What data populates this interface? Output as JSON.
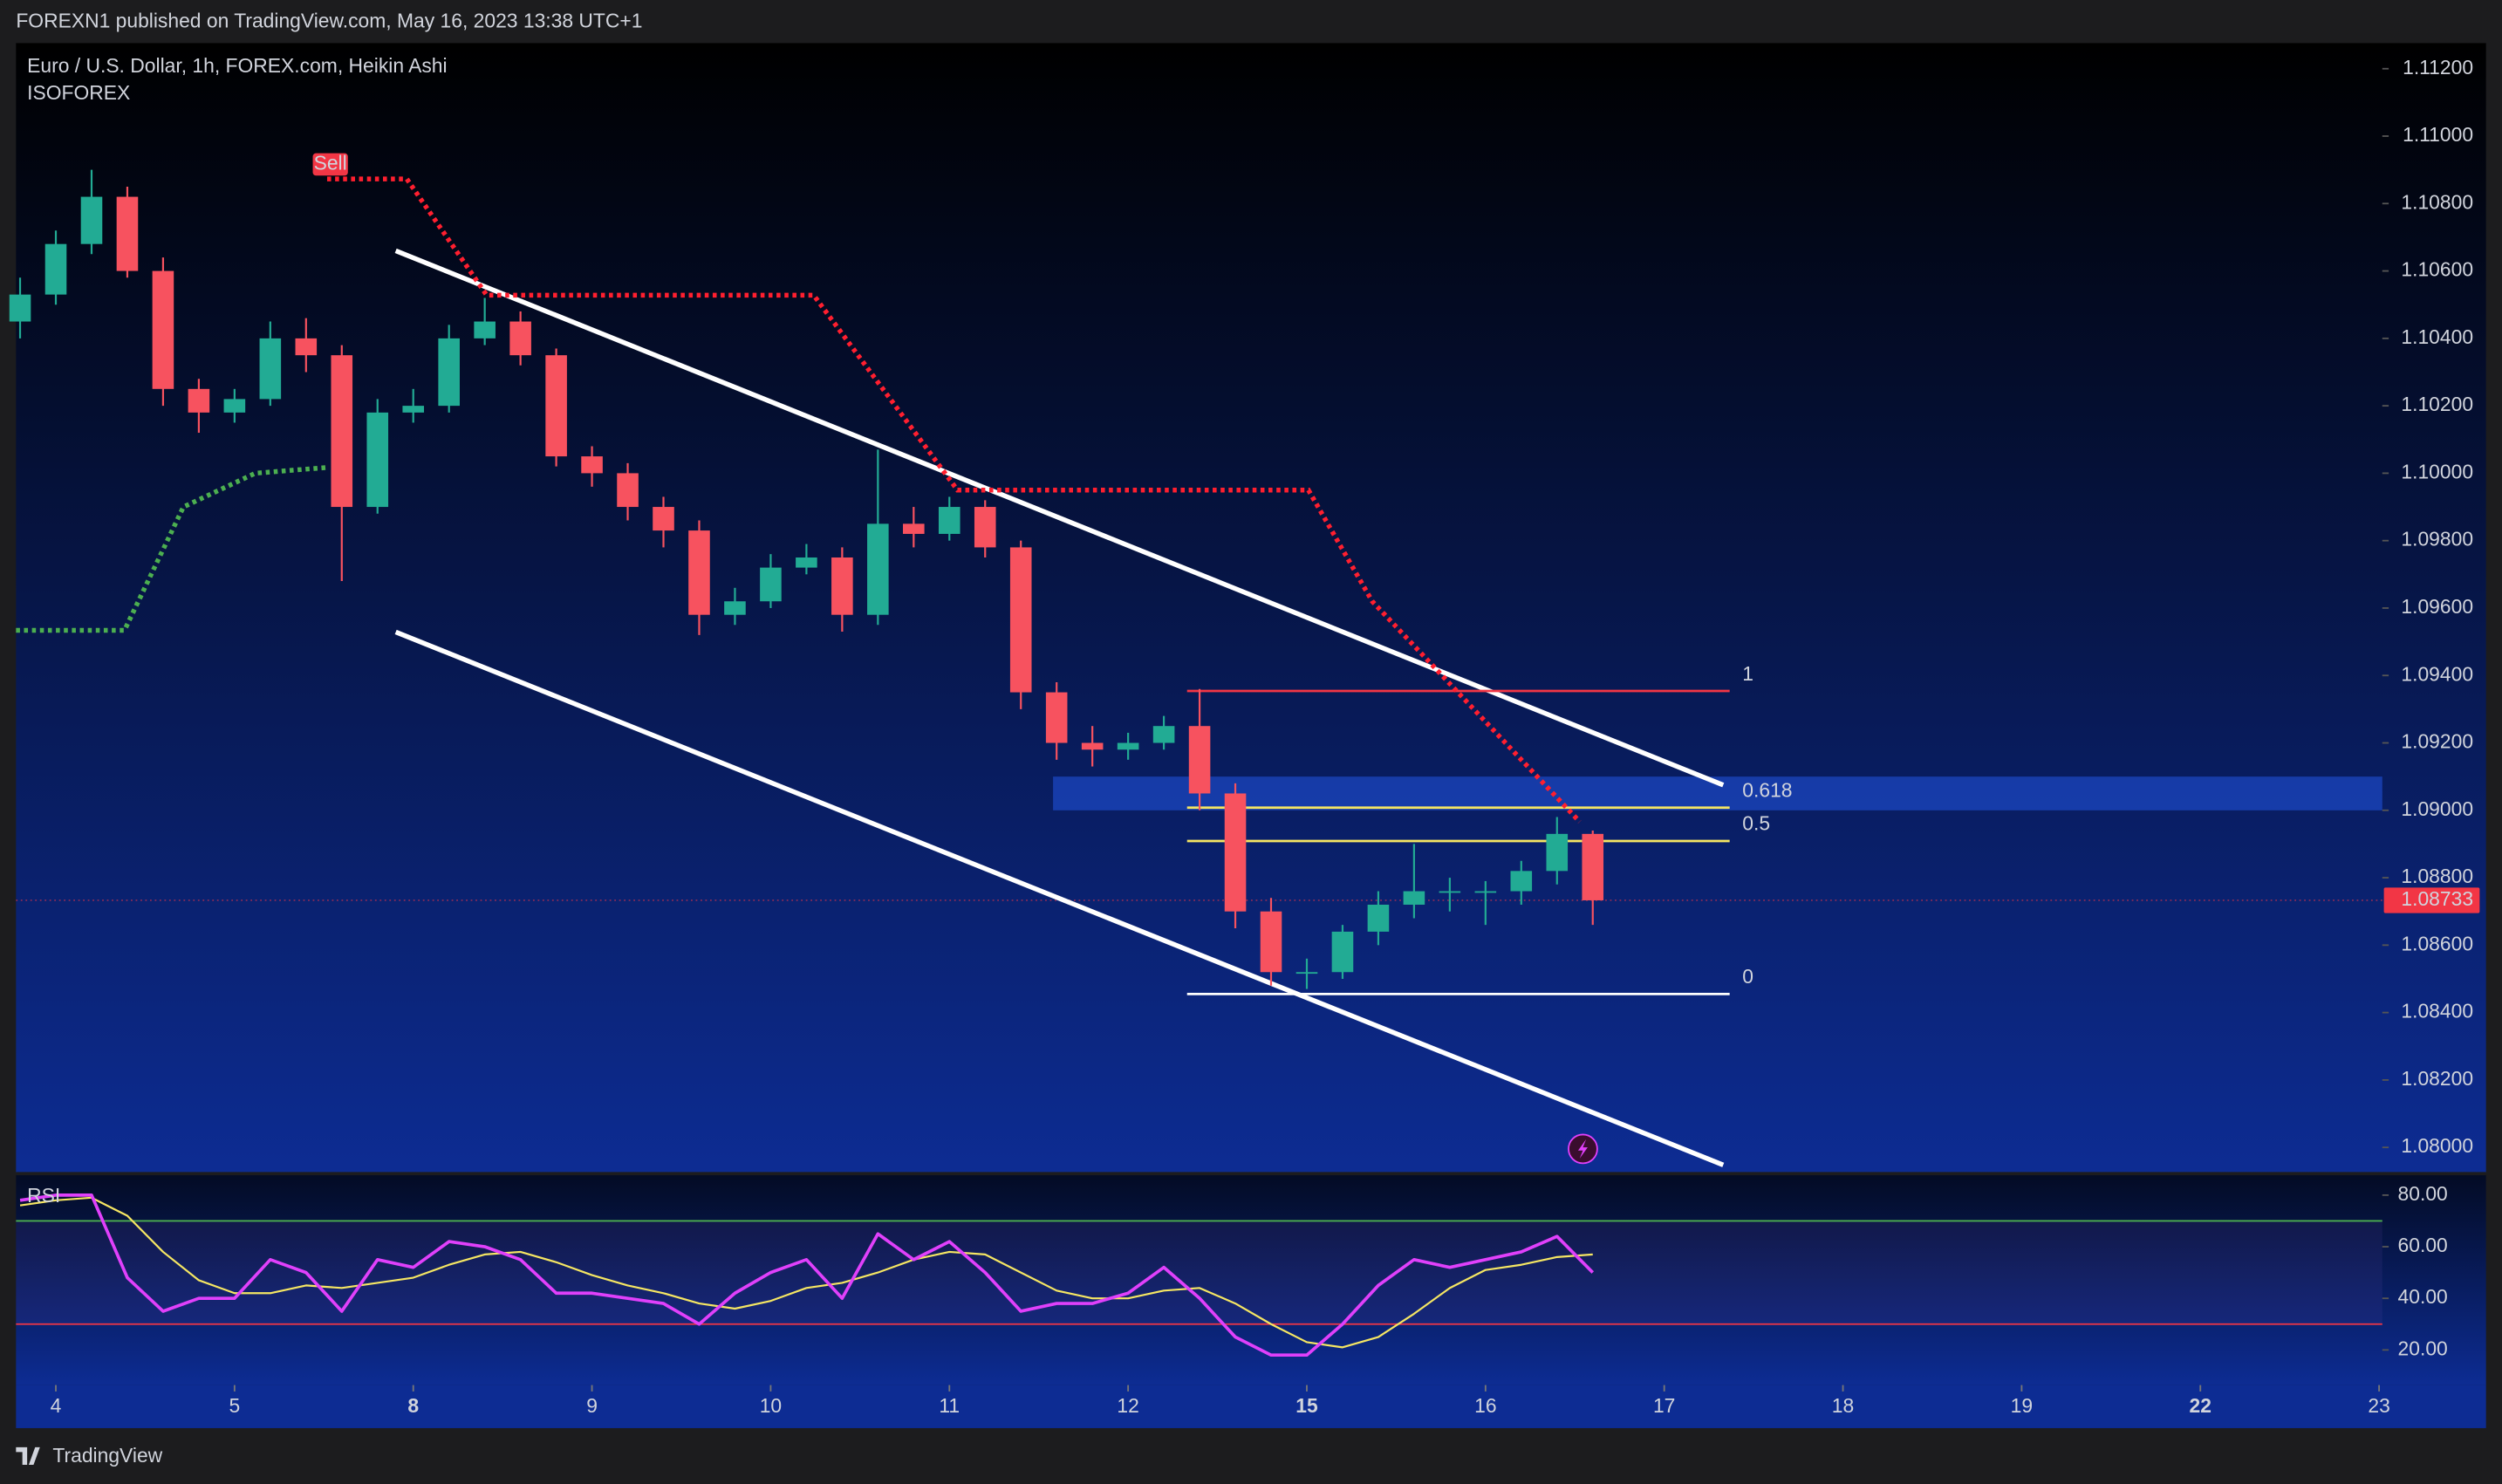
{
  "header": {
    "published": "FOREXN1 published on TradingView.com, May 16, 2023 13:38 UTC+1",
    "footer": "TradingView"
  },
  "chart_data": [
    {
      "type": "candlestick",
      "title": "Euro / U.S. Dollar, 1h, FOREX.com, Heikin Ashi",
      "subtitle": "ISOFOREX",
      "x": [
        -0.2,
        0,
        0.2,
        0.4,
        0.6,
        0.8,
        1,
        1.2,
        1.4,
        1.6,
        1.8,
        2,
        2.2,
        2.4,
        2.6,
        2.8,
        3,
        3.2,
        3.4,
        3.6,
        3.8,
        4,
        4.2,
        4.4,
        4.6,
        4.8,
        5,
        5.2,
        5.4,
        5.6,
        5.8,
        6,
        6.2,
        6.4,
        6.6,
        6.8,
        7,
        7.2,
        7.4,
        7.6,
        7.8,
        8,
        8.2,
        8.4,
        8.6
      ],
      "open": [
        1.1045,
        1.1053,
        1.1068,
        1.1082,
        1.106,
        1.1025,
        1.1018,
        1.1022,
        1.104,
        1.1035,
        1.099,
        1.1018,
        1.102,
        1.104,
        1.1045,
        1.1035,
        1.1005,
        1.1,
        1.099,
        1.0983,
        1.0958,
        1.0962,
        1.0972,
        1.0975,
        1.0958,
        1.0985,
        1.0982,
        1.099,
        1.0978,
        1.0935,
        1.092,
        1.0918,
        1.092,
        1.0925,
        1.0905,
        1.087,
        1.0852,
        1.0852,
        1.0864,
        1.0872,
        1.0876,
        1.0876,
        1.0876,
        1.0882,
        1.0893
      ],
      "high": [
        1.1058,
        1.1072,
        1.109,
        1.1085,
        1.1064,
        1.1028,
        1.1025,
        1.1045,
        1.1046,
        1.1038,
        1.1022,
        1.1025,
        1.1044,
        1.1052,
        1.1048,
        1.1037,
        1.1008,
        1.1003,
        1.0993,
        1.0986,
        1.0966,
        1.0976,
        1.0979,
        1.0978,
        1.1007,
        1.099,
        1.0993,
        1.0992,
        1.098,
        1.0938,
        1.0925,
        1.0923,
        1.0928,
        1.0936,
        1.0908,
        1.0874,
        1.0856,
        1.0866,
        1.0876,
        1.089,
        1.088,
        1.0879,
        1.0885,
        1.0898,
        1.0894
      ],
      "low": [
        1.104,
        1.105,
        1.1065,
        1.1058,
        1.102,
        1.1012,
        1.1015,
        1.102,
        1.103,
        1.0968,
        1.0988,
        1.1015,
        1.1018,
        1.1038,
        1.1032,
        1.1002,
        1.0996,
        1.0986,
        1.0978,
        1.0952,
        1.0955,
        1.096,
        1.097,
        1.0953,
        1.0955,
        1.0978,
        1.098,
        1.0975,
        1.093,
        1.0915,
        1.0913,
        1.0915,
        1.0918,
        1.09,
        1.0865,
        1.0848,
        1.0847,
        1.085,
        1.086,
        1.0868,
        1.087,
        1.0866,
        1.0872,
        1.0878,
        1.0866
      ],
      "close": [
        1.1053,
        1.1068,
        1.1082,
        1.106,
        1.1025,
        1.1018,
        1.1022,
        1.104,
        1.1035,
        1.099,
        1.1018,
        1.102,
        1.104,
        1.1045,
        1.1035,
        1.1005,
        1.1,
        1.099,
        1.0983,
        1.0958,
        1.0962,
        1.0972,
        1.0975,
        1.0958,
        1.0985,
        1.0982,
        1.099,
        1.0978,
        1.0935,
        1.092,
        1.0918,
        1.092,
        1.0925,
        1.0905,
        1.087,
        1.0852,
        1.0852,
        1.0864,
        1.0872,
        1.0876,
        1.0876,
        1.0876,
        1.0882,
        1.0893,
        1.08733
      ],
      "up_color": "#22ab94",
      "down_color": "#f7525f",
      "xlim": [
        -0.223,
        13.018
      ],
      "xticks": [
        {
          "value": 0,
          "label": "4"
        },
        {
          "value": 1,
          "label": "5"
        },
        {
          "value": 2,
          "label": "8",
          "bold": true
        },
        {
          "value": 3,
          "label": "9"
        },
        {
          "value": 4,
          "label": "10"
        },
        {
          "value": 5,
          "label": "11"
        },
        {
          "value": 6,
          "label": "12"
        },
        {
          "value": 7,
          "label": "15",
          "bold": true
        },
        {
          "value": 8,
          "label": "16"
        },
        {
          "value": 9,
          "label": "17"
        },
        {
          "value": 10,
          "label": "18"
        },
        {
          "value": 11,
          "label": "19"
        },
        {
          "value": 12,
          "label": "22",
          "bold": true
        },
        {
          "value": 13,
          "label": "23"
        }
      ],
      "ylim": [
        1.07934,
        1.11276
      ],
      "yticks": [
        {
          "value": 1.112,
          "label": "1.11200"
        },
        {
          "value": 1.11,
          "label": "1.11000"
        },
        {
          "value": 1.108,
          "label": "1.10800"
        },
        {
          "value": 1.106,
          "label": "1.10600"
        },
        {
          "value": 1.104,
          "label": "1.10400"
        },
        {
          "value": 1.102,
          "label": "1.10200"
        },
        {
          "value": 1.1,
          "label": "1.10000"
        },
        {
          "value": 1.098,
          "label": "1.09800"
        },
        {
          "value": 1.096,
          "label": "1.09600"
        },
        {
          "value": 1.094,
          "label": "1.09400"
        },
        {
          "value": 1.092,
          "label": "1.09200"
        },
        {
          "value": 1.09,
          "label": "1.09000"
        },
        {
          "value": 1.088,
          "label": "1.08800"
        },
        {
          "value": 1.086,
          "label": "1.08600"
        },
        {
          "value": 1.084,
          "label": "1.08400"
        },
        {
          "value": 1.082,
          "label": "1.08200"
        },
        {
          "value": 1.08,
          "label": "1.08000"
        }
      ],
      "last_price": 1.08733,
      "last_price_color": "#f23645",
      "overlays": [
        {
          "color": "#ff1f2f",
          "x": [
            1.518,
            1.964,
            2.411,
            4.241,
            5.045,
            7.009,
            7.366,
            8.527
          ],
          "values": [
            1.10873,
            1.10873,
            1.10528,
            1.10528,
            1.0995,
            1.0995,
            1.0962,
            1.08966
          ]
        },
        {
          "color": "#4caf50",
          "x": [
            -0.223,
            0.384,
            0.714,
            1.116,
            1.518
          ],
          "values": [
            1.09534,
            1.09534,
            1.099,
            1.1,
            1.10017
          ]
        }
      ],
      "signal": {
        "label": "Sell",
        "x": 1.536,
        "value": 1.10916,
        "color": "#f23645"
      },
      "trend_lines": [
        {
          "x": [
            1.902,
            9.33
          ],
          "values": [
            1.1066,
            1.09075
          ],
          "color": "#ffffff"
        },
        {
          "x": [
            1.902,
            9.33
          ],
          "values": [
            1.09529,
            1.07948
          ],
          "color": "#ffffff"
        }
      ],
      "fib": {
        "x": [
          6.33,
          9.366
        ],
        "levels": [
          {
            "label": "1",
            "value": 1.09354,
            "color": "#f23645"
          },
          {
            "label": "0.618",
            "value": 1.09008,
            "color": "#f5e663"
          },
          {
            "label": "0.5",
            "value": 1.08909,
            "color": "#f5e663"
          },
          {
            "label": "0",
            "value": 1.08455,
            "color": "#ffffff"
          }
        ]
      },
      "zone": {
        "x": [
          5.58,
          13.018
        ],
        "values": [
          1.091,
          1.09
        ],
        "color": "#2962ff"
      }
    },
    {
      "type": "line",
      "title": "RSI",
      "series": [
        {
          "color": "#e040fb",
          "values": [
            78,
            80,
            80,
            48,
            35,
            40,
            40,
            55,
            50,
            35,
            55,
            52,
            62,
            60,
            55,
            42,
            42,
            40,
            38,
            30,
            42,
            50,
            55,
            40,
            65,
            55,
            62,
            50,
            35,
            38,
            38,
            42,
            52,
            40,
            25,
            18,
            18,
            30,
            45,
            55,
            52,
            55,
            58,
            64,
            50
          ]
        },
        {
          "color": "#f5e663",
          "values": [
            76,
            78,
            79,
            72,
            58,
            47,
            42,
            42,
            45,
            44,
            46,
            48,
            53,
            57,
            58,
            54,
            49,
            45,
            42,
            38,
            36,
            39,
            44,
            46,
            50,
            55,
            58,
            57,
            50,
            43,
            40,
            40,
            43,
            44,
            38,
            30,
            23,
            21,
            25,
            34,
            44,
            51,
            53,
            56,
            57
          ]
        }
      ],
      "ylim": [
        7,
        87.4
      ],
      "yticks": [
        {
          "value": 80,
          "label": "80.00"
        },
        {
          "value": 60,
          "label": "60.00"
        },
        {
          "value": 40,
          "label": "40.00"
        },
        {
          "value": 20,
          "label": "20.00"
        }
      ],
      "bands": [
        {
          "value": 70,
          "color": "#4caf50"
        },
        {
          "value": 30,
          "color": "#f23645"
        }
      ]
    }
  ]
}
